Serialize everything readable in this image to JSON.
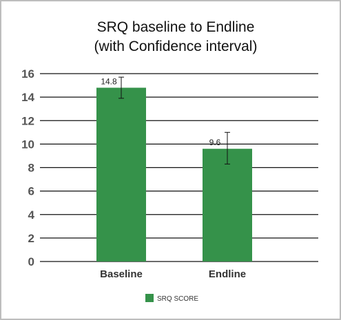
{
  "chart_data": {
    "type": "bar",
    "title_lines": [
      "SRQ baseline to Endline",
      "(with Confidence interval)"
    ],
    "categories": [
      "Baseline",
      "Endline"
    ],
    "series": [
      {
        "name": "SRQ SCORE",
        "values": [
          14.8,
          9.6
        ],
        "error_low": [
          13.9,
          8.3
        ],
        "error_high": [
          15.7,
          11.0
        ],
        "data_labels": [
          "14.8",
          "9.6"
        ]
      }
    ],
    "y_ticks": [
      "0",
      "2",
      "4",
      "6",
      "8",
      "10",
      "12",
      "14",
      "16"
    ],
    "ylim": [
      0,
      16
    ],
    "grid": true,
    "legend_position": "bottom",
    "colors": {
      "bar": "#35924a",
      "grid": "#111111",
      "error": "#111111"
    }
  }
}
